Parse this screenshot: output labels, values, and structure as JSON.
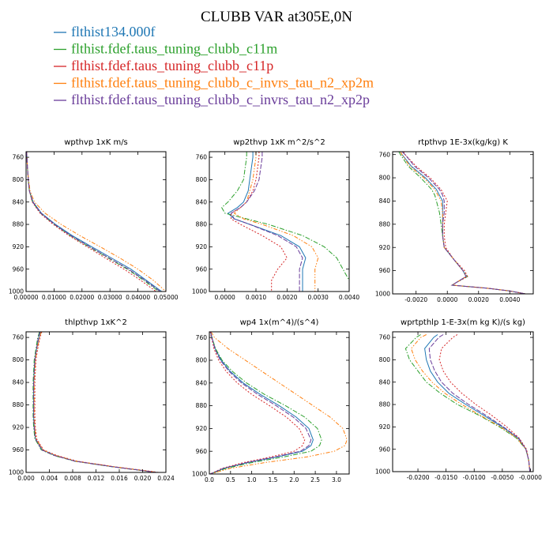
{
  "figure": {
    "title": "CLUBB VAR at305E,0N",
    "legend": [
      {
        "name": "flthist134.000f",
        "color": "#1f77b4"
      },
      {
        "name": "flthist.fdef.taus_tuning_clubb_c11m",
        "color": "#2ca02c"
      },
      {
        "name": "flthist.fdef.taus_tuning_clubb_c11p",
        "color": "#d62728"
      },
      {
        "name": "flthist.fdef.taus_tuning_clubb_c_invrs_tau_n2_xp2m",
        "color": "#ff7f0e"
      },
      {
        "name": "flthist.fdef.taus_tuning_clubb_c_invrs_tau_n2_xp2p",
        "color": "#6a3d9a"
      }
    ]
  },
  "chart_data": [
    {
      "type": "line",
      "title": "wpthvp  1xK m/s",
      "xlabel": "",
      "ylabel": "",
      "xlim": [
        0,
        0.05
      ],
      "ylim": [
        1000,
        750
      ],
      "xticks": [
        0,
        0.01,
        0.02,
        0.03,
        0.04,
        0.05
      ],
      "xtick_labels": [
        "0.00000",
        "0.01000",
        "0.02000",
        "0.03000",
        "0.04000",
        "0.05000"
      ],
      "yticks": [
        760,
        800,
        840,
        880,
        920,
        960,
        1000
      ],
      "ytick_labels": [
        "760",
        "800",
        "840",
        "880",
        "920",
        "960",
        "1000"
      ],
      "y": [
        750,
        760,
        780,
        800,
        820,
        840,
        860,
        880,
        900,
        920,
        940,
        960,
        980,
        1000
      ],
      "series": [
        {
          "values": [
            0.0002,
            0.0003,
            0.0005,
            0.0008,
            0.0012,
            0.0025,
            0.0055,
            0.0105,
            0.0165,
            0.0235,
            0.0305,
            0.0375,
            0.043,
            0.0485
          ]
        },
        {
          "values": [
            0.0002,
            0.0003,
            0.0005,
            0.0008,
            0.0012,
            0.0023,
            0.0052,
            0.01,
            0.0158,
            0.0225,
            0.0293,
            0.0362,
            0.042,
            0.0475
          ]
        },
        {
          "values": [
            0.0002,
            0.0003,
            0.0005,
            0.0008,
            0.0012,
            0.0022,
            0.005,
            0.0097,
            0.0153,
            0.0218,
            0.0283,
            0.035,
            0.041,
            0.0465
          ]
        },
        {
          "values": [
            0.0002,
            0.0003,
            0.0005,
            0.0009,
            0.0014,
            0.003,
            0.0068,
            0.0125,
            0.0192,
            0.0265,
            0.0335,
            0.04,
            0.0455,
            0.05
          ]
        },
        {
          "values": [
            0.0002,
            0.0003,
            0.0005,
            0.0008,
            0.0012,
            0.0024,
            0.0053,
            0.0102,
            0.016,
            0.0228,
            0.0297,
            0.0366,
            0.0425,
            0.048
          ]
        }
      ]
    },
    {
      "type": "line",
      "title": "wp2thvp  1xK m^2/s^2",
      "xlabel": "",
      "ylabel": "",
      "xlim": [
        -0.0005,
        0.004
      ],
      "ylim": [
        1000,
        750
      ],
      "xticks": [
        0,
        0.001,
        0.002,
        0.003,
        0.004
      ],
      "xtick_labels": [
        "0.0000",
        "0.0010",
        "0.0020",
        "0.0030",
        "0.0040"
      ],
      "yticks": [
        760,
        800,
        840,
        880,
        920,
        960,
        1000
      ],
      "ytick_labels": [
        "760",
        "800",
        "840",
        "880",
        "920",
        "960",
        "1000"
      ],
      "y": [
        750,
        760,
        780,
        800,
        820,
        840,
        850,
        860,
        870,
        880,
        900,
        920,
        940,
        960,
        980,
        1000
      ],
      "series": [
        {
          "values": [
            0.0009,
            0.0009,
            0.00085,
            0.0008,
            0.00075,
            0.0006,
            0.0004,
            0.0001,
            0.0003,
            0.0008,
            0.0018,
            0.0024,
            0.0026,
            0.0025,
            0.0025,
            0.0025
          ]
        },
        {
          "values": [
            0.0007,
            0.0007,
            0.00065,
            0.0006,
            0.0004,
            0.0001,
            -0.0001,
            0.0,
            0.0007,
            0.0014,
            0.0025,
            0.0032,
            0.0036,
            0.0038,
            0.004,
            0.004
          ]
        },
        {
          "values": [
            0.0011,
            0.0011,
            0.00105,
            0.001,
            0.0009,
            0.0007,
            0.0005,
            0.0002,
            0.0002,
            0.0005,
            0.0012,
            0.0018,
            0.002,
            0.0017,
            0.0015,
            0.0015
          ]
        },
        {
          "values": [
            0.001,
            0.001,
            0.00095,
            0.0009,
            0.0008,
            0.0007,
            0.0005,
            0.0003,
            0.0006,
            0.0012,
            0.0022,
            0.0028,
            0.003,
            0.0029,
            0.0029,
            0.0029
          ]
        },
        {
          "values": [
            0.0012,
            0.0012,
            0.00115,
            0.0011,
            0.00095,
            0.0007,
            0.0005,
            0.0002,
            0.0003,
            0.0008,
            0.0017,
            0.0023,
            0.0025,
            0.0024,
            0.0024,
            0.0024
          ]
        }
      ]
    },
    {
      "type": "line",
      "title": "rtpthvp  1E-3x(kg/kg) K",
      "xlabel": "",
      "ylabel": "",
      "xlim": [
        -0.0035,
        0.0055
      ],
      "ylim": [
        1000,
        755
      ],
      "xticks": [
        -0.002,
        0,
        0.002,
        0.004
      ],
      "xtick_labels": [
        "-0.0020",
        "0.0000",
        "0.0020",
        "0.0040"
      ],
      "yticks": [
        760,
        800,
        840,
        880,
        920,
        960,
        1000
      ],
      "ytick_labels": [
        "760",
        "800",
        "840",
        "880",
        "920",
        "960",
        "1000"
      ],
      "y": [
        755,
        760,
        780,
        800,
        820,
        830,
        840,
        860,
        880,
        900,
        920,
        940,
        960,
        970,
        980,
        985,
        990,
        995,
        1000
      ],
      "series": [
        {
          "values": [
            -0.003,
            -0.0029,
            -0.0023,
            -0.0014,
            -0.0007,
            -0.0005,
            -0.0003,
            -0.0003,
            -0.0003,
            -0.0003,
            -0.0002,
            0.0004,
            0.001,
            0.0012,
            0.0006,
            0.0003,
            0.0025,
            0.004,
            0.005
          ]
        },
        {
          "values": [
            -0.0031,
            -0.003,
            -0.0025,
            -0.0017,
            -0.001,
            -0.0008,
            -0.0007,
            -0.0005,
            -0.0004,
            -0.0003,
            -0.0002,
            0.0004,
            0.001,
            0.0013,
            0.0006,
            0.0003,
            0.0025,
            0.004,
            0.005
          ]
        },
        {
          "values": [
            -0.0028,
            -0.0027,
            -0.002,
            -0.0011,
            -0.0004,
            -0.0002,
            0.0,
            -0.0001,
            -0.0002,
            -0.0002,
            -0.0001,
            0.0004,
            0.0011,
            0.0013,
            0.0006,
            0.0003,
            0.0025,
            0.004,
            0.005
          ]
        },
        {
          "values": [
            -0.003,
            -0.0029,
            -0.0024,
            -0.0015,
            -0.0008,
            -0.0006,
            -0.0004,
            -0.0003,
            -0.0003,
            -0.0003,
            -0.0002,
            0.0004,
            0.001,
            0.0012,
            0.0006,
            0.0003,
            0.0025,
            0.004,
            0.005
          ]
        },
        {
          "values": [
            -0.0029,
            -0.0027,
            -0.0021,
            -0.0012,
            -0.0005,
            -0.0003,
            -0.0002,
            -0.0002,
            -0.0003,
            -0.0003,
            -0.0002,
            0.0004,
            0.001,
            0.0012,
            0.0006,
            0.0003,
            0.0025,
            0.004,
            0.005
          ]
        }
      ]
    },
    {
      "type": "line",
      "title": "thlpthvp  1xK^2",
      "xlabel": "",
      "ylabel": "",
      "xlim": [
        0,
        0.024
      ],
      "ylim": [
        1000,
        750
      ],
      "xticks": [
        0,
        0.004,
        0.008,
        0.012,
        0.016,
        0.02,
        0.024
      ],
      "xtick_labels": [
        "0.000",
        "0.004",
        "0.008",
        "0.012",
        "0.016",
        "0.020",
        "0.024"
      ],
      "yticks": [
        760,
        800,
        840,
        880,
        920,
        960,
        1000
      ],
      "ytick_labels": [
        "760",
        "800",
        "840",
        "880",
        "920",
        "960",
        "1000"
      ],
      "y": [
        750,
        760,
        780,
        800,
        820,
        840,
        860,
        880,
        900,
        920,
        940,
        960,
        970,
        980,
        990,
        1000
      ],
      "series": [
        {
          "values": [
            0.0025,
            0.0022,
            0.0018,
            0.0015,
            0.0014,
            0.0013,
            0.0013,
            0.0013,
            0.0013,
            0.0014,
            0.0016,
            0.0028,
            0.005,
            0.0085,
            0.015,
            0.0225
          ]
        },
        {
          "values": [
            0.0023,
            0.002,
            0.0017,
            0.0014,
            0.0013,
            0.0012,
            0.0012,
            0.0012,
            0.0012,
            0.0013,
            0.0015,
            0.0026,
            0.0048,
            0.0083,
            0.0148,
            0.0223
          ]
        },
        {
          "values": [
            0.0027,
            0.0024,
            0.002,
            0.0017,
            0.0016,
            0.0015,
            0.0015,
            0.0015,
            0.0015,
            0.0016,
            0.0018,
            0.003,
            0.0053,
            0.0088,
            0.0153,
            0.0228
          ]
        },
        {
          "values": [
            0.0026,
            0.0023,
            0.0019,
            0.0016,
            0.0015,
            0.0014,
            0.0014,
            0.0014,
            0.0014,
            0.0015,
            0.0017,
            0.0029,
            0.0051,
            0.0086,
            0.0151,
            0.0226
          ]
        },
        {
          "values": [
            0.0024,
            0.0021,
            0.0018,
            0.0015,
            0.0014,
            0.0013,
            0.0013,
            0.0013,
            0.0013,
            0.0014,
            0.0016,
            0.0027,
            0.0049,
            0.0084,
            0.0149,
            0.0224
          ]
        }
      ]
    },
    {
      "type": "line",
      "title": "wp4  1x(m^4)/(s^4)",
      "xlabel": "",
      "ylabel": "",
      "xlim": [
        0,
        3.3
      ],
      "ylim": [
        1000,
        750
      ],
      "xticks": [
        0,
        0.5,
        1.0,
        1.5,
        2.0,
        2.5,
        3.0
      ],
      "xtick_labels": [
        "0.0",
        "0.5",
        "1.0",
        "1.5",
        "2.0",
        "2.5",
        "3.0"
      ],
      "yticks": [
        760,
        800,
        840,
        880,
        920,
        960,
        1000
      ],
      "ytick_labels": [
        "760",
        "800",
        "840",
        "880",
        "920",
        "960",
        "1000"
      ],
      "y": [
        750,
        760,
        780,
        800,
        820,
        840,
        860,
        880,
        900,
        920,
        940,
        950,
        960,
        970,
        980,
        990,
        1000
      ],
      "series": [
        {
          "values": [
            0.03,
            0.06,
            0.14,
            0.28,
            0.5,
            0.8,
            1.2,
            1.65,
            2.05,
            2.35,
            2.45,
            2.4,
            2.2,
            1.6,
            0.9,
            0.35,
            0.02
          ]
        },
        {
          "values": [
            0.03,
            0.06,
            0.15,
            0.3,
            0.55,
            0.88,
            1.3,
            1.8,
            2.25,
            2.55,
            2.65,
            2.6,
            2.4,
            1.75,
            1.0,
            0.4,
            0.02
          ]
        },
        {
          "values": [
            0.02,
            0.05,
            0.11,
            0.22,
            0.4,
            0.66,
            1.0,
            1.42,
            1.82,
            2.12,
            2.25,
            2.2,
            2.0,
            1.45,
            0.8,
            0.3,
            0.02
          ]
        },
        {
          "values": [
            0.04,
            0.12,
            0.45,
            0.85,
            1.25,
            1.65,
            2.05,
            2.45,
            2.85,
            3.15,
            3.25,
            3.2,
            2.95,
            2.3,
            1.3,
            0.5,
            0.02
          ]
        },
        {
          "values": [
            0.03,
            0.06,
            0.13,
            0.26,
            0.47,
            0.76,
            1.14,
            1.58,
            1.98,
            2.28,
            2.4,
            2.35,
            2.15,
            1.55,
            0.87,
            0.33,
            0.02
          ]
        }
      ]
    },
    {
      "type": "line",
      "title": "wprtpthlp  1-E-3x(m kg K)/(s kg)",
      "xlabel": "",
      "ylabel": "",
      "xlim": [
        -0.0245,
        0.0005
      ],
      "ylim": [
        1000,
        750
      ],
      "xticks": [
        -0.02,
        -0.015,
        -0.01,
        -0.005,
        0.0
      ],
      "xtick_labels": [
        "-0.0200",
        "-0.0150",
        "-0.0100",
        "-0.0050",
        "-0.0000"
      ],
      "yticks": [
        760,
        800,
        840,
        880,
        920,
        960,
        1000
      ],
      "ytick_labels": [
        "760",
        "800",
        "840",
        "880",
        "920",
        "960",
        "1000"
      ],
      "y": [
        755,
        760,
        780,
        800,
        820,
        840,
        860,
        880,
        900,
        920,
        940,
        960,
        980,
        1000
      ],
      "series": [
        {
          "values": [
            -0.0165,
            -0.0172,
            -0.0188,
            -0.0185,
            -0.0178,
            -0.0165,
            -0.0145,
            -0.0115,
            -0.0082,
            -0.005,
            -0.0022,
            -0.0008,
            -0.0003,
            -0.0001
          ]
        },
        {
          "values": [
            -0.0195,
            -0.0203,
            -0.0222,
            -0.0215,
            -0.02,
            -0.0185,
            -0.016,
            -0.013,
            -0.009,
            -0.0055,
            -0.0025,
            -0.0008,
            -0.0003,
            -0.0001
          ]
        },
        {
          "values": [
            -0.013,
            -0.0138,
            -0.0158,
            -0.0162,
            -0.0155,
            -0.0142,
            -0.0122,
            -0.0097,
            -0.0068,
            -0.0042,
            -0.002,
            -0.0007,
            -0.0003,
            -0.0001
          ]
        },
        {
          "values": [
            -0.0185,
            -0.0195,
            -0.0212,
            -0.0205,
            -0.0192,
            -0.0175,
            -0.0152,
            -0.0122,
            -0.0088,
            -0.0053,
            -0.0024,
            -0.0008,
            -0.0003,
            -0.0001
          ]
        },
        {
          "values": [
            -0.0155,
            -0.0163,
            -0.018,
            -0.0178,
            -0.017,
            -0.0158,
            -0.0138,
            -0.011,
            -0.0078,
            -0.0048,
            -0.0021,
            -0.0008,
            -0.0003,
            -0.0001
          ]
        }
      ]
    }
  ]
}
